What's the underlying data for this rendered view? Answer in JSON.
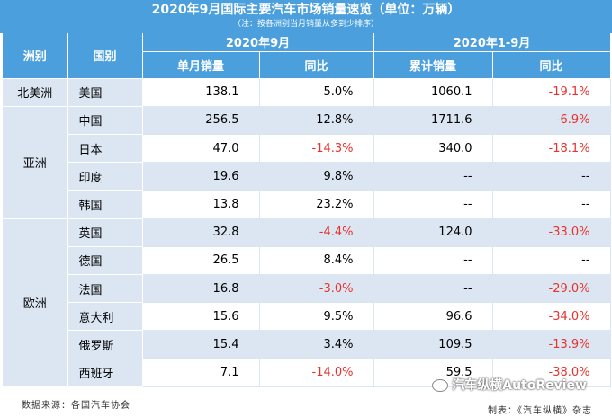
{
  "title": "2020年9月国际主要汽车市场销量速览（单位：万辆）",
  "subtitle": "（注：按各洲别当月销量从多到少排序）",
  "headers": {
    "continent": "洲别",
    "country": "国别",
    "period_month": "2020年9月",
    "period_ytd": "2020年1-9月",
    "monthly_sales": "单月销量",
    "yoy_month": "同比",
    "cumulative_sales": "累计销量",
    "yoy_ytd": "同比"
  },
  "continents": {
    "north_america": "北美洲",
    "asia": "亚洲",
    "europe": "欧洲"
  },
  "rows": [
    {
      "country": "美国",
      "monthly": "138.1",
      "yoy_m": "5.0%",
      "cumulative": "1060.1",
      "yoy_c": "-19.1%"
    },
    {
      "country": "中国",
      "monthly": "256.5",
      "yoy_m": "12.8%",
      "cumulative": "1711.6",
      "yoy_c": "-6.9%"
    },
    {
      "country": "日本",
      "monthly": "47.0",
      "yoy_m": "-14.3%",
      "cumulative": "340.0",
      "yoy_c": "-18.1%"
    },
    {
      "country": "印度",
      "monthly": "19.6",
      "yoy_m": "9.8%",
      "cumulative": "--",
      "yoy_c": "--"
    },
    {
      "country": "韩国",
      "monthly": "13.8",
      "yoy_m": "23.2%",
      "cumulative": "--",
      "yoy_c": "--"
    },
    {
      "country": "英国",
      "monthly": "32.8",
      "yoy_m": "-4.4%",
      "cumulative": "124.0",
      "yoy_c": "-33.0%"
    },
    {
      "country": "德国",
      "monthly": "26.5",
      "yoy_m": "8.4%",
      "cumulative": "--",
      "yoy_c": "--"
    },
    {
      "country": "法国",
      "monthly": "16.8",
      "yoy_m": "-3.0%",
      "cumulative": "--",
      "yoy_c": "-29.0%"
    },
    {
      "country": "意大利",
      "monthly": "15.6",
      "yoy_m": "9.5%",
      "cumulative": "96.6",
      "yoy_c": "-34.0%"
    },
    {
      "country": "俄罗斯",
      "monthly": "15.4",
      "yoy_m": "3.4%",
      "cumulative": "109.5",
      "yoy_c": "-13.9%"
    },
    {
      "country": "西班牙",
      "monthly": "7.1",
      "yoy_m": "-14.0%",
      "cumulative": "59.5",
      "yoy_c": "-38.0%"
    }
  ],
  "footer": {
    "source": "数据来源：各国汽车协会",
    "maker": "制表：《汽车纵横》杂志",
    "watermark": "汽车纵横AutoReview"
  },
  "colors": {
    "header_blue": "#4a9fdc",
    "light_blue": "#dce6f2",
    "negative_red": "#e8322d"
  }
}
